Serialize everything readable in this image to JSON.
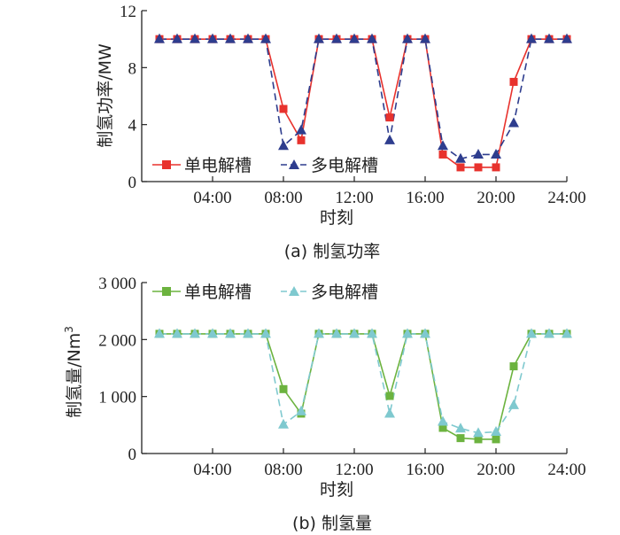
{
  "chart_data": [
    {
      "type": "line",
      "caption": "(a)  制氢功率",
      "xlabel": "时刻",
      "ylabel": "制氢功率/MW",
      "ylim": [
        0,
        12
      ],
      "yticks": [
        0,
        4,
        8,
        12
      ],
      "ytick_labels": [
        "0",
        "4",
        "8",
        "12"
      ],
      "xlim": [
        0,
        24
      ],
      "xticks": [
        4,
        8,
        12,
        16,
        20,
        24
      ],
      "xtick_labels": [
        "04:00",
        "08:00",
        "12:00",
        "16:00",
        "20:00",
        "24:00"
      ],
      "x": [
        1,
        2,
        3,
        4,
        5,
        6,
        7,
        8,
        9,
        10,
        11,
        12,
        13,
        14,
        15,
        16,
        17,
        18,
        19,
        20,
        21,
        22,
        23,
        24
      ],
      "legend_position": "lower-left",
      "series": [
        {
          "name": "单电解槽",
          "color": "#e8322d",
          "marker": "square",
          "dash": false,
          "values": [
            10,
            10,
            10,
            10,
            10,
            10,
            10,
            5.1,
            2.9,
            10,
            10,
            10,
            10,
            4.5,
            10,
            10,
            1.9,
            1.0,
            1.0,
            1.0,
            7.0,
            10,
            10,
            10
          ]
        },
        {
          "name": "多电解槽",
          "color": "#2e3d8e",
          "marker": "triangle",
          "dash": true,
          "values": [
            10,
            10,
            10,
            10,
            10,
            10,
            10,
            2.5,
            3.6,
            10,
            10,
            10,
            10,
            2.9,
            10,
            10,
            2.5,
            1.6,
            1.9,
            1.9,
            4.1,
            10,
            10,
            10
          ]
        }
      ]
    },
    {
      "type": "line",
      "caption": "(b)  制氢量",
      "xlabel": "时刻",
      "ylabel": "制氢量/Nm",
      "ylabel_sup": "3",
      "ylim": [
        0,
        3000
      ],
      "yticks": [
        0,
        1000,
        2000,
        3000
      ],
      "ytick_labels": [
        "0",
        "1 000",
        "2 000",
        "3 000"
      ],
      "xlim": [
        0,
        24
      ],
      "xticks": [
        4,
        8,
        12,
        16,
        20,
        24
      ],
      "xtick_labels": [
        "04:00",
        "08:00",
        "12:00",
        "16:00",
        "20:00",
        "24:00"
      ],
      "x": [
        1,
        2,
        3,
        4,
        5,
        6,
        7,
        8,
        9,
        10,
        11,
        12,
        13,
        14,
        15,
        16,
        17,
        18,
        19,
        20,
        21,
        22,
        23,
        24
      ],
      "legend_position": "top",
      "series": [
        {
          "name": "单电解槽",
          "color": "#6cb33f",
          "marker": "square",
          "dash": false,
          "values": [
            2100,
            2100,
            2100,
            2100,
            2100,
            2100,
            2100,
            1130,
            700,
            2100,
            2100,
            2100,
            2100,
            1010,
            2100,
            2100,
            450,
            270,
            250,
            250,
            1530,
            2100,
            2100,
            2100
          ]
        },
        {
          "name": "多电解槽",
          "color": "#7fc9cf",
          "marker": "triangle",
          "dash": true,
          "values": [
            2100,
            2100,
            2100,
            2100,
            2100,
            2100,
            2100,
            510,
            740,
            2100,
            2100,
            2100,
            2100,
            700,
            2100,
            2100,
            560,
            440,
            360,
            380,
            850,
            2100,
            2100,
            2100
          ]
        }
      ]
    }
  ]
}
